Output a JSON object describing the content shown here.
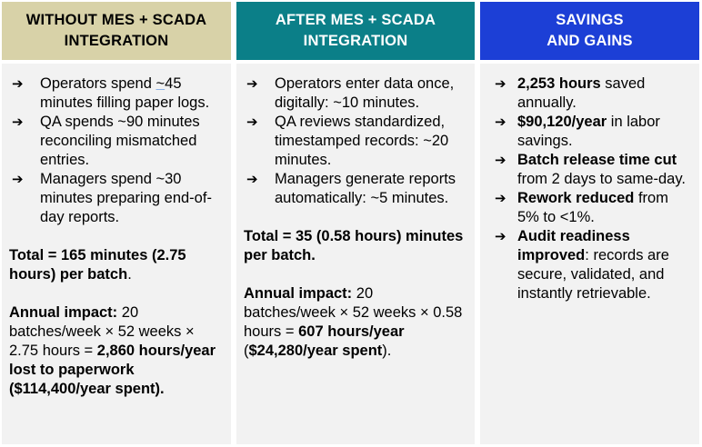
{
  "headers": {
    "col1": [
      "WITHOUT MES + SCADA",
      "INTEGRATION"
    ],
    "col2": [
      "AFTER MES + SCADA",
      "INTEGRATION"
    ],
    "col3": [
      "SAVINGS",
      "AND GAINS"
    ]
  },
  "arrow_glyph": "➔",
  "col1": {
    "bullets": [
      {
        "pre": "Operators spend ",
        "tilde": "~",
        "post": "45 minutes filling paper logs."
      },
      {
        "text": "QA spends ~90 minutes reconciling mismatched entries."
      },
      {
        "text": "Managers spend ~30 minutes preparing end-of-day reports."
      }
    ],
    "total_bold": "Total = 165 minutes (2.75 hours) per batch",
    "total_tail": ".",
    "impact_label": "Annual impact:",
    "impact_text": " 20 batches/week × 52 weeks × 2.75 hours = ",
    "impact_bold": "2,860 hours/year lost to paperwork ($114,400/year spent)."
  },
  "col2": {
    "bullets": [
      {
        "text": "Operators enter data once, digitally: ~10 minutes."
      },
      {
        "text": "QA reviews standardized, timestamped records: ~20 minutes."
      },
      {
        "text": "Managers generate reports automatically: ~5 minutes."
      }
    ],
    "total_bold": "Total = 35 (0.58 hours) minutes per batch.",
    "impact_label": "Annual impact:",
    "impact_text": " 20 batches/week × 52 weeks × 0.58 hours = ",
    "impact_bold": "607 hours/year",
    "impact_after_open": " (",
    "impact_bold2": "$24,280/year spent",
    "impact_close": ")."
  },
  "col3": {
    "bullets": [
      {
        "bold": "2,253 hours",
        "text": " saved annually."
      },
      {
        "bold": "$90,120/year",
        "text": " in labor savings."
      },
      {
        "bold": "Batch release time cut",
        "text": " from 2 days to same-day."
      },
      {
        "bold": "Rework reduced",
        "text": " from 5% to <1%."
      },
      {
        "bold": "Audit readiness improved",
        "text": ": records are secure, validated, and instantly retrievable."
      }
    ]
  }
}
